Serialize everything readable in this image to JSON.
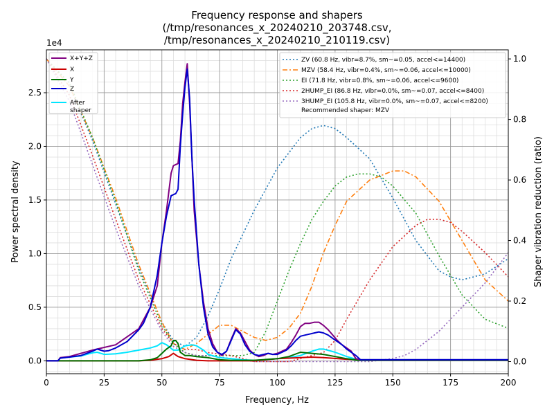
{
  "chart_data": {
    "type": "line",
    "title": "Frequency response and shapers",
    "subtitle_lines": [
      "(/tmp/resonances_x_20240210_203748.csv,",
      "/tmp/resonances_x_20240210_210119.csv)"
    ],
    "xlabel": "Frequency, Hz",
    "ylabel_left": "Power spectral density",
    "ylabel_right": "Shaper vibration reduction (ratio)",
    "y_left_multiplier": "1e4",
    "xlim": [
      0,
      200
    ],
    "ylim_left": [
      -1200,
      29000
    ],
    "ylim_right": [
      -0.04,
      1.03
    ],
    "x_ticks": [
      0,
      25,
      50,
      75,
      100,
      125,
      150,
      175,
      200
    ],
    "y_left_ticks": [
      0,
      5000,
      10000,
      15000,
      20000,
      25000
    ],
    "y_left_tick_labels": [
      "0.0",
      "0.5",
      "1.0",
      "1.5",
      "2.0",
      "2.5"
    ],
    "y_right_ticks": [
      0.0,
      0.2,
      0.4,
      0.6,
      0.8,
      1.0
    ],
    "y_right_tick_labels": [
      "0.0",
      "0.2",
      "0.4",
      "0.6",
      "0.8",
      "1.0"
    ],
    "grid": true,
    "legend_left_placement": "top-left",
    "legend_right_placement": "top-right",
    "recommended_text": "Recommended shaper: MZV",
    "psd_series": [
      {
        "name": "X+Y+Z",
        "color": "#800080",
        "x": [
          0,
          5,
          6,
          10,
          20,
          30,
          40,
          45,
          48,
          50,
          52,
          54,
          55,
          56,
          57,
          58,
          59,
          60,
          61,
          62,
          63,
          64,
          66,
          68,
          70,
          72,
          74,
          76,
          78,
          80,
          82,
          84,
          86,
          88,
          90,
          92,
          94,
          96,
          98,
          100,
          102,
          104,
          106,
          108,
          110,
          112,
          114,
          116,
          118,
          120,
          122,
          124,
          126,
          128,
          130,
          132,
          134,
          136,
          150,
          200
        ],
        "y": [
          0,
          0,
          300,
          400,
          1000,
          1500,
          3000,
          5000,
          7000,
          11000,
          14000,
          17500,
          18200,
          18300,
          18400,
          20500,
          24000,
          26000,
          27700,
          24000,
          19000,
          14000,
          9000,
          5500,
          3000,
          1600,
          800,
          500,
          900,
          2000,
          3000,
          2600,
          1800,
          1000,
          600,
          400,
          500,
          700,
          600,
          700,
          900,
          1100,
          1700,
          2400,
          3200,
          3500,
          3500,
          3600,
          3600,
          3300,
          2900,
          2400,
          1900,
          1500,
          1200,
          900,
          200,
          100,
          100,
          100
        ]
      },
      {
        "name": "X",
        "color": "#cc0000",
        "x": [
          0,
          40,
          45,
          50,
          53,
          55,
          57,
          60,
          65,
          70,
          75,
          80,
          90,
          100,
          110,
          115,
          120,
          130,
          140,
          200
        ],
        "y": [
          0,
          0,
          50,
          200,
          400,
          700,
          400,
          200,
          50,
          0,
          0,
          0,
          0,
          200,
          300,
          350,
          300,
          150,
          50,
          50
        ]
      },
      {
        "name": "Y",
        "color": "#007000",
        "x": [
          0,
          40,
          45,
          48,
          50,
          52,
          54,
          55,
          56,
          57,
          58,
          60,
          62,
          65,
          70,
          75,
          80,
          90,
          100,
          105,
          110,
          115,
          120,
          125,
          130,
          135,
          140,
          200
        ],
        "y": [
          0,
          0,
          100,
          300,
          700,
          1100,
          1400,
          1900,
          1900,
          1600,
          800,
          500,
          500,
          400,
          300,
          100,
          50,
          50,
          200,
          400,
          800,
          700,
          600,
          400,
          200,
          50,
          50,
          50
        ]
      },
      {
        "name": "Z",
        "color": "#0000cc",
        "x": [
          0,
          5,
          6,
          10,
          15,
          20,
          22,
          25,
          27,
          30,
          35,
          40,
          42,
          45,
          48,
          50,
          52,
          54,
          56,
          57,
          58,
          59,
          60,
          61,
          62,
          63,
          64,
          66,
          68,
          70,
          72,
          74,
          76,
          78,
          80,
          82,
          84,
          86,
          88,
          90,
          92,
          94,
          96,
          98,
          100,
          102,
          104,
          106,
          108,
          110,
          112,
          114,
          116,
          118,
          120,
          122,
          124,
          126,
          128,
          130,
          132,
          134,
          136,
          150,
          200
        ],
        "y": [
          0,
          0,
          250,
          350,
          500,
          900,
          1100,
          900,
          950,
          1200,
          1800,
          2900,
          3500,
          5000,
          8000,
          11000,
          13500,
          15400,
          15600,
          16000,
          20000,
          23000,
          25500,
          27200,
          24500,
          19000,
          15000,
          9000,
          5000,
          2500,
          1300,
          800,
          600,
          900,
          1900,
          2900,
          2500,
          1500,
          900,
          600,
          500,
          600,
          700,
          600,
          600,
          800,
          1000,
          1400,
          1900,
          2300,
          2400,
          2500,
          2600,
          2700,
          2600,
          2400,
          2100,
          1800,
          1500,
          1100,
          800,
          500,
          100,
          100,
          100
        ]
      },
      {
        "name": "After\nshaper",
        "color": "#00e5ff",
        "x": [
          0,
          5,
          6,
          10,
          15,
          20,
          22,
          25,
          30,
          35,
          40,
          45,
          48,
          50,
          52,
          55,
          57,
          60,
          63,
          65,
          68,
          70,
          75,
          80,
          85,
          90,
          95,
          100,
          105,
          110,
          115,
          118,
          120,
          125,
          130,
          135,
          140,
          200
        ],
        "y": [
          0,
          0,
          250,
          350,
          450,
          750,
          800,
          600,
          650,
          800,
          1000,
          1200,
          1400,
          1700,
          1500,
          1000,
          1000,
          1400,
          1500,
          1400,
          1000,
          600,
          300,
          200,
          100,
          50,
          100,
          200,
          300,
          500,
          900,
          1100,
          1100,
          800,
          400,
          100,
          100,
          100
        ]
      }
    ],
    "shaper_series": [
      {
        "name": "ZV (60.8 Hz, vibr=8.7%, sm~=0.05, accel<=14400)",
        "color": "#1f77b4",
        "dash": "2,3",
        "x": [
          0,
          10,
          20,
          30,
          40,
          50,
          55,
          60,
          65,
          70,
          75,
          80,
          90,
          100,
          110,
          115,
          120,
          125,
          130,
          140,
          150,
          160,
          170,
          175,
          180,
          190,
          200
        ],
        "y": [
          1.0,
          0.91,
          0.73,
          0.52,
          0.31,
          0.13,
          0.07,
          0.05,
          0.08,
          0.15,
          0.24,
          0.34,
          0.5,
          0.64,
          0.74,
          0.77,
          0.78,
          0.77,
          0.74,
          0.67,
          0.54,
          0.4,
          0.3,
          0.28,
          0.27,
          0.29,
          0.34
        ]
      },
      {
        "name": "MZV (58.4 Hz, vibr=0.4%, sm~=0.06, accel<=10000)",
        "color": "#ff7f0e",
        "dash": "7,3,2,3",
        "x": [
          0,
          10,
          20,
          30,
          40,
          50,
          55,
          60,
          65,
          70,
          75,
          80,
          85,
          90,
          95,
          100,
          105,
          110,
          115,
          120,
          125,
          130,
          140,
          150,
          155,
          160,
          170,
          180,
          190,
          200
        ],
        "y": [
          1.0,
          0.91,
          0.74,
          0.54,
          0.32,
          0.13,
          0.06,
          0.04,
          0.06,
          0.09,
          0.12,
          0.12,
          0.1,
          0.08,
          0.07,
          0.08,
          0.11,
          0.16,
          0.25,
          0.36,
          0.45,
          0.53,
          0.6,
          0.63,
          0.63,
          0.61,
          0.53,
          0.4,
          0.27,
          0.2
        ]
      },
      {
        "name": "EI (71.8 Hz, vibr=0.8%, sm~=0.06, accel<=9600)",
        "color": "#2ca02c",
        "dash": "2,3",
        "x": [
          0,
          10,
          20,
          30,
          40,
          50,
          55,
          60,
          65,
          70,
          75,
          80,
          85,
          90,
          95,
          100,
          105,
          110,
          115,
          120,
          125,
          130,
          135,
          140,
          145,
          150,
          160,
          170,
          180,
          190,
          200
        ],
        "y": [
          1.0,
          0.92,
          0.74,
          0.53,
          0.3,
          0.12,
          0.06,
          0.03,
          0.02,
          0.02,
          0.02,
          0.02,
          0.02,
          0.03,
          0.1,
          0.2,
          0.3,
          0.39,
          0.47,
          0.53,
          0.58,
          0.61,
          0.62,
          0.62,
          0.61,
          0.58,
          0.49,
          0.35,
          0.22,
          0.14,
          0.11
        ]
      },
      {
        "name": "2HUMP_EI (86.8 Hz, vibr=0.0%, sm~=0.07, accel<=8400)",
        "color": "#d62728",
        "dash": "2,3",
        "x": [
          0,
          10,
          20,
          30,
          40,
          50,
          55,
          60,
          65,
          70,
          80,
          90,
          100,
          105,
          110,
          115,
          120,
          125,
          130,
          140,
          150,
          160,
          165,
          170,
          175,
          180,
          190,
          200
        ],
        "y": [
          1.0,
          0.88,
          0.68,
          0.47,
          0.27,
          0.11,
          0.06,
          0.04,
          0.04,
          0.03,
          0.02,
          0.0,
          0.0,
          0.0,
          0.01,
          0.02,
          0.03,
          0.07,
          0.14,
          0.27,
          0.38,
          0.45,
          0.47,
          0.47,
          0.46,
          0.43,
          0.36,
          0.28
        ]
      },
      {
        "name": "3HUMP_EI (105.8 Hz, vibr=0.0%, sm~=0.07, accel<=8200)",
        "color": "#9467bd",
        "dash": "2,3",
        "x": [
          0,
          10,
          20,
          30,
          40,
          50,
          55,
          60,
          65,
          70,
          80,
          90,
          100,
          110,
          120,
          130,
          140,
          150,
          155,
          160,
          170,
          180,
          190,
          200
        ],
        "y": [
          1.0,
          0.86,
          0.65,
          0.44,
          0.25,
          0.1,
          0.05,
          0.03,
          0.02,
          0.02,
          0.01,
          0.0,
          0.0,
          0.0,
          0.0,
          0.0,
          0.0,
          0.01,
          0.02,
          0.04,
          0.1,
          0.18,
          0.26,
          0.36
        ]
      }
    ]
  }
}
